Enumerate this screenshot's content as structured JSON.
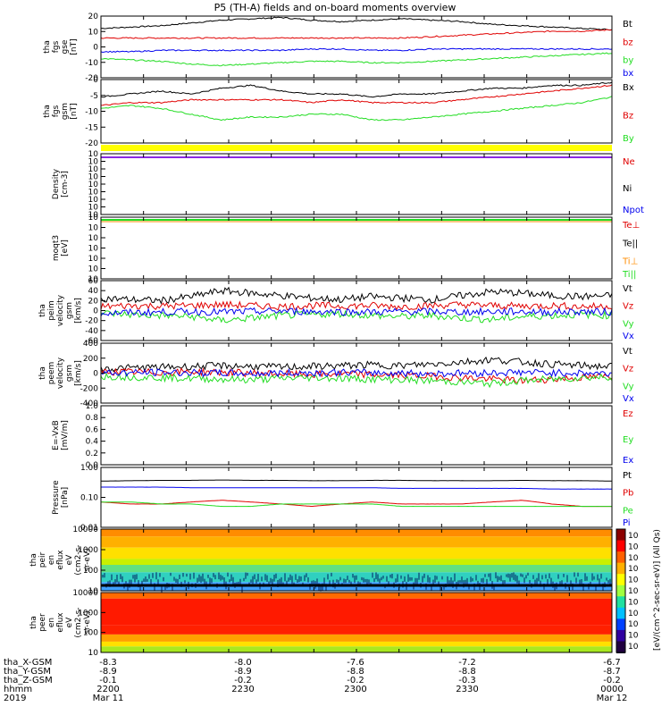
{
  "title": "P5 (TH-A) fields and on-board moments overview",
  "colors": {
    "black": "#000000",
    "red": "#e00000",
    "green": "#22dd22",
    "blue": "#0000ee",
    "yellow": "#ffff00",
    "orange": "#ff8c00",
    "purple": "#8a2be2",
    "cyan": "#00cccc"
  },
  "chart_data": [
    {
      "type": "line",
      "panel": "fgs_gse",
      "ylabel": [
        "tha",
        "fgs",
        "gse",
        "[nT]"
      ],
      "ylim": [
        -25,
        20
      ],
      "yticks": [
        "20",
        "10",
        "0",
        "-10",
        "-20"
      ],
      "series": [
        {
          "name": "Bt",
          "color": "black",
          "values": [
            11,
            12,
            13,
            15,
            17,
            18,
            19,
            17,
            16,
            17,
            18,
            17,
            16,
            14,
            13,
            12,
            11,
            10
          ]
        },
        {
          "name": "bz",
          "color": "red",
          "values": [
            4,
            4,
            4,
            4,
            4,
            4,
            4,
            4,
            4,
            4,
            4,
            5,
            6,
            7,
            8,
            9,
            9,
            10
          ]
        },
        {
          "name": "by",
          "color": "green",
          "values": [
            -11,
            -12,
            -13,
            -15,
            -16,
            -15,
            -14,
            -13,
            -13,
            -14,
            -14,
            -13,
            -12,
            -11,
            -10,
            -9,
            -8,
            -7
          ]
        },
        {
          "name": "bx",
          "color": "blue",
          "values": [
            -6,
            -6,
            -5,
            -5,
            -5,
            -5,
            -5,
            -4,
            -4,
            -5,
            -5,
            -4,
            -4,
            -4,
            -4,
            -4,
            -4,
            -4
          ]
        }
      ]
    },
    {
      "type": "line",
      "panel": "fgs_gsm",
      "ylabel": [
        "tha",
        "fgs",
        "gsm",
        "[nT]"
      ],
      "ylim": [
        -22,
        0
      ],
      "yticks": [
        "0",
        "-5",
        "-10",
        "-15",
        "-20"
      ],
      "series": [
        {
          "name": "Bx",
          "color": "black",
          "values": [
            -6,
            -5,
            -4,
            -5,
            -3,
            -2,
            -4,
            -5,
            -5,
            -6,
            -5,
            -5,
            -4,
            -3,
            -3,
            -2,
            -2,
            -1
          ]
        },
        {
          "name": "Bz",
          "color": "red",
          "values": [
            -9,
            -8,
            -8,
            -7,
            -7,
            -7,
            -7,
            -8,
            -7,
            -8,
            -8,
            -8,
            -7,
            -6,
            -5,
            -4,
            -3,
            -2
          ]
        },
        {
          "name": "By",
          "color": "green",
          "values": [
            -10,
            -9,
            -10,
            -12,
            -14,
            -13,
            -13,
            -12,
            -12,
            -14,
            -14,
            -13,
            -12,
            -11,
            -10,
            -9,
            -8,
            -6
          ]
        }
      ]
    },
    {
      "type": "line",
      "panel": "density",
      "ylabel": [
        "Density",
        "[cm-3]"
      ],
      "ylim": [
        -16,
        2
      ],
      "log": true,
      "yticks": [
        "10",
        "10",
        "10",
        "10",
        "10",
        "10",
        "10",
        "10",
        "10"
      ],
      "series": [
        {
          "name": "Ne",
          "color": "red"
        },
        {
          "name": "Ni",
          "color": "black"
        },
        {
          "name": "Npot",
          "color": "blue"
        }
      ]
    },
    {
      "type": "line",
      "panel": "temperature",
      "ylabel": [
        "moqt3",
        "[eV]"
      ],
      "ylim": [
        -10,
        4
      ],
      "log": true,
      "yticks": [
        "10",
        "10",
        "10",
        "10",
        "10",
        "10",
        "10"
      ],
      "series": [
        {
          "name": "Te⊥",
          "color": "red"
        },
        {
          "name": "Te||",
          "color": "black"
        },
        {
          "name": "Ti⊥",
          "color": "orange"
        },
        {
          "name": "Ti||",
          "color": "green"
        }
      ]
    },
    {
      "type": "line",
      "panel": "peim_velocity",
      "ylabel": [
        "tha",
        "peim",
        "velocity",
        "gsm",
        "[km/s]"
      ],
      "ylim": [
        -60,
        60
      ],
      "yticks": [
        "60",
        "40",
        "20",
        "0",
        "-20",
        "-40",
        "-60"
      ],
      "series": [
        {
          "name": "Vt",
          "color": "black",
          "values": [
            25,
            22,
            20,
            28,
            40,
            35,
            30,
            25,
            22,
            28,
            25,
            22,
            30,
            38,
            35,
            30,
            28,
            30
          ]
        },
        {
          "name": "Vz",
          "color": "red",
          "values": [
            8,
            10,
            9,
            10,
            12,
            10,
            8,
            10,
            9,
            10,
            8,
            10,
            12,
            10,
            9,
            10,
            8,
            9
          ]
        },
        {
          "name": "Vy",
          "color": "green",
          "values": [
            -5,
            -8,
            -10,
            -12,
            -20,
            -15,
            -10,
            -8,
            -6,
            -10,
            -12,
            -10,
            -15,
            -18,
            -12,
            -10,
            -8,
            -10
          ]
        },
        {
          "name": "Vx",
          "color": "blue",
          "values": [
            -5,
            -4,
            -3,
            -2,
            -3,
            -2,
            -1,
            -2,
            -2,
            -3,
            -2,
            -2,
            -3,
            -2,
            -2,
            -3,
            -2,
            -3
          ]
        }
      ]
    },
    {
      "type": "line",
      "panel": "peem_velocity",
      "ylabel": [
        "tha",
        "peem",
        "velocity",
        "gsm",
        "[km/s]"
      ],
      "ylim": [
        -400,
        400
      ],
      "yticks": [
        "400",
        "200",
        "0",
        "-200",
        "-400"
      ],
      "series": [
        {
          "name": "Vt",
          "color": "black",
          "values": [
            60,
            70,
            80,
            90,
            100,
            90,
            80,
            90,
            100,
            110,
            100,
            120,
            150,
            180,
            150,
            120,
            100,
            90
          ]
        },
        {
          "name": "Vz",
          "color": "red",
          "values": [
            20,
            15,
            10,
            20,
            10,
            0,
            -10,
            -20,
            -10,
            -20,
            -30,
            -40,
            -60,
            -80,
            -100,
            -80,
            -60,
            -40
          ]
        },
        {
          "name": "Vy",
          "color": "green",
          "values": [
            -40,
            -50,
            -60,
            -70,
            -80,
            -90,
            -70,
            -60,
            -70,
            -80,
            -90,
            -100,
            -120,
            -140,
            -100,
            -80,
            -60,
            -50
          ]
        },
        {
          "name": "Vx",
          "color": "blue",
          "values": [
            0,
            5,
            10,
            5,
            0,
            -5,
            0,
            5,
            10,
            5,
            0,
            -5,
            0,
            5,
            10,
            5,
            0,
            -5
          ]
        }
      ]
    },
    {
      "type": "line",
      "panel": "efield",
      "ylabel": [
        "E=-VxB",
        "[mV/m]"
      ],
      "ylim": [
        0,
        1
      ],
      "yticks": [
        "1.0",
        "0.8",
        "0.6",
        "0.4",
        "0.2",
        "0.0"
      ],
      "series": [
        {
          "name": "Ez",
          "color": "red"
        },
        {
          "name": "Ey",
          "color": "green"
        },
        {
          "name": "Ex",
          "color": "blue"
        }
      ]
    },
    {
      "type": "line",
      "panel": "pressure",
      "ylabel": [
        "Pressure",
        "[nPa]"
      ],
      "ylim": [
        0.01,
        1
      ],
      "log": true,
      "yticks": [
        "1.00",
        "0.10",
        "0.01"
      ],
      "series": [
        {
          "name": "Pt",
          "color": "black",
          "values": [
            0.35,
            0.36,
            0.37,
            0.37,
            0.38,
            0.37,
            0.37,
            0.36,
            0.36,
            0.37,
            0.37,
            0.36,
            0.36,
            0.36,
            0.37,
            0.36,
            0.36,
            0.35
          ]
        },
        {
          "name": "Pb",
          "color": "red",
          "values": [
            0.07,
            0.06,
            0.06,
            0.07,
            0.08,
            0.07,
            0.06,
            0.05,
            0.06,
            0.07,
            0.06,
            0.06,
            0.06,
            0.07,
            0.08,
            0.06,
            0.05,
            0.05
          ]
        },
        {
          "name": "Pe",
          "color": "green",
          "values": [
            0.07,
            0.07,
            0.06,
            0.06,
            0.05,
            0.05,
            0.06,
            0.06,
            0.06,
            0.06,
            0.05,
            0.05,
            0.05,
            0.05,
            0.05,
            0.05,
            0.05,
            0.05
          ]
        },
        {
          "name": "Pi",
          "color": "blue",
          "values": [
            0.22,
            0.22,
            0.22,
            0.21,
            0.21,
            0.21,
            0.21,
            0.21,
            0.21,
            0.21,
            0.2,
            0.2,
            0.2,
            0.2,
            0.2,
            0.19,
            0.19,
            0.19
          ]
        }
      ]
    },
    {
      "type": "heatmap",
      "panel": "peir_eflux",
      "ylabel": [
        "tha",
        "peir",
        "en",
        "eflux",
        "eV",
        "(cm2-s-",
        "sr-eV)"
      ],
      "yticks": [
        "10000",
        "1000",
        "100",
        "10"
      ]
    },
    {
      "type": "heatmap",
      "panel": "peer_eflux",
      "ylabel": [
        "tha",
        "peer",
        "en",
        "eflux",
        "eV",
        "(cm2-s-",
        "sr-eV)"
      ],
      "yticks": [
        "10000",
        "1000",
        "100",
        "10"
      ]
    }
  ],
  "colorbar": {
    "ticks": [
      "10",
      "10",
      "10",
      "10",
      "10",
      "10",
      "10",
      "10",
      "10",
      "10",
      "10"
    ],
    "label": "[eV/(cm^2-sec-sr-eV)] (All Qs)"
  },
  "xaxis": {
    "rows": [
      {
        "label": "tha_X-GSM",
        "values": [
          "-8.3",
          "-8.0",
          "-7.6",
          "-7.2",
          "-6.7"
        ]
      },
      {
        "label": "tha_Y-GSM",
        "values": [
          "-8.9",
          "-8.9",
          "-8.8",
          "-8.8",
          "-8.7"
        ]
      },
      {
        "label": "tha_Z-GSM",
        "values": [
          "-0.1",
          "-0.2",
          "-0.2",
          "-0.3",
          "-0.2"
        ]
      },
      {
        "label": "hhmm",
        "values": [
          "2200",
          "2230",
          "2300",
          "2330",
          "0000"
        ]
      },
      {
        "label": "2019",
        "values": [
          "Mar 11",
          "",
          "",
          "",
          "Mar 12"
        ]
      }
    ]
  }
}
